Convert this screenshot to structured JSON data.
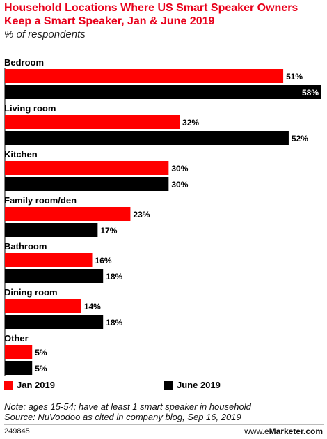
{
  "header": {
    "title": "Household Locations Where US Smart Speaker Owners Keep a Smart Speaker, Jan & June 2019",
    "subtitle": "% of respondents"
  },
  "colors": {
    "jan": "#ff0000",
    "june": "#000000",
    "title": "#e8001b"
  },
  "chart_data": {
    "type": "bar",
    "orientation": "horizontal",
    "title": "Household Locations Where US Smart Speaker Owners Keep a Smart Speaker, Jan & June 2019",
    "subtitle": "% of respondents",
    "categories": [
      "Bedroom",
      "Living room",
      "Kitchen",
      "Family room/den",
      "Bathroom",
      "Dining room",
      "Other"
    ],
    "series": [
      {
        "name": "Jan 2019",
        "values": [
          51,
          32,
          30,
          23,
          16,
          14,
          5
        ]
      },
      {
        "name": "June 2019",
        "values": [
          58,
          52,
          30,
          17,
          18,
          18,
          5
        ]
      }
    ],
    "value_suffix": "%",
    "xlim": [
      0,
      58
    ],
    "grid": false,
    "legend": "bottom-left"
  },
  "legend": {
    "items": [
      "Jan 2019",
      "June 2019"
    ]
  },
  "footer": {
    "note": "Note: ages 15-54; have at least 1 smart speaker in household",
    "source": "Source: NuVoodoo as cited in company blog, Sep 16, 2019",
    "id": "249845",
    "brand_www": "www.",
    "brand_e": "e",
    "brand_rest": "Marketer.com"
  }
}
